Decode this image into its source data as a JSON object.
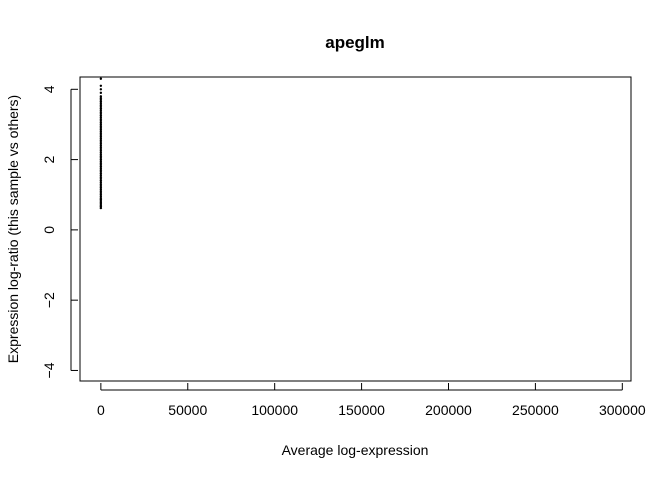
{
  "chart_data": {
    "type": "scatter",
    "title": "apeglm",
    "xlabel": "Average log-expression",
    "ylabel": "Expression log-ratio (this sample vs others)",
    "xlim": [
      -12000,
      305000
    ],
    "ylim": [
      -4.3,
      4.35
    ],
    "xticks": [
      0,
      50000,
      100000,
      150000,
      200000,
      250000,
      300000
    ],
    "yticks": [
      -4,
      -2,
      0,
      2,
      4
    ],
    "grid": false,
    "legend": "none",
    "point_color": "#000000",
    "series": [
      {
        "x": [
          0,
          0,
          0,
          0,
          0,
          0,
          0,
          0,
          0,
          0,
          0,
          0,
          0,
          0,
          0,
          0,
          0,
          0,
          0,
          0,
          0,
          0,
          0,
          0,
          0,
          0,
          0,
          0,
          0,
          0,
          0,
          0,
          0,
          0,
          0,
          0,
          0,
          0,
          0,
          0,
          0,
          0,
          0,
          0,
          0,
          0,
          0,
          0,
          0,
          0,
          0,
          0,
          0,
          0,
          0,
          0,
          0,
          0,
          0,
          0,
          0,
          0,
          0,
          0,
          0,
          0,
          0,
          0,
          0,
          0
        ],
        "y": [
          0.62,
          0.66,
          0.7,
          0.74,
          0.78,
          0.82,
          0.86,
          0.9,
          0.95,
          1.0,
          1.05,
          1.1,
          1.15,
          1.2,
          1.25,
          1.3,
          1.35,
          1.4,
          1.45,
          1.5,
          1.55,
          1.6,
          1.65,
          1.7,
          1.75,
          1.8,
          1.85,
          1.9,
          1.95,
          2.0,
          2.05,
          2.1,
          2.15,
          2.2,
          2.25,
          2.3,
          2.35,
          2.4,
          2.45,
          2.5,
          2.55,
          2.6,
          2.65,
          2.7,
          2.75,
          2.8,
          2.85,
          2.9,
          2.95,
          3.0,
          3.05,
          3.1,
          3.15,
          3.2,
          3.25,
          3.3,
          3.35,
          3.4,
          3.45,
          3.5,
          3.55,
          3.6,
          3.65,
          3.7,
          3.75,
          3.8,
          3.9,
          4.0,
          4.1,
          4.3
        ]
      }
    ]
  }
}
